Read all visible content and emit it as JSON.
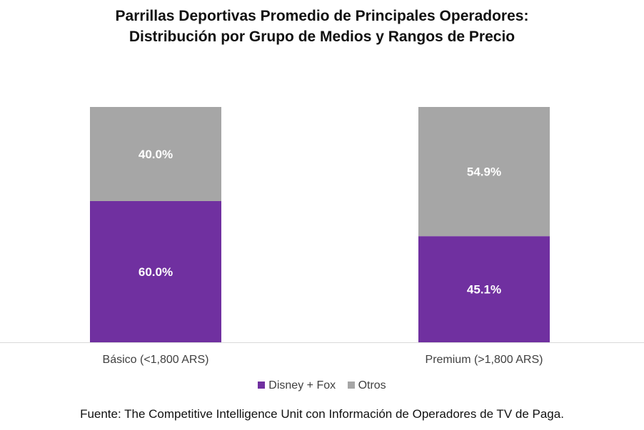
{
  "chart_data": {
    "type": "bar",
    "stacked": true,
    "percent_stacked": true,
    "title_lines": [
      "Parrillas Deportivas Promedio de Principales Operadores:",
      "Distribución por Grupo de Medios y Rangos de Precio"
    ],
    "categories": [
      "Básico (<1,800 ARS)",
      "Premium (>1,800 ARS)"
    ],
    "series": [
      {
        "name": "Disney + Fox",
        "values": [
          60.0,
          45.1
        ],
        "labels": [
          "60.0%",
          "45.1%"
        ],
        "color": "#7030a0"
      },
      {
        "name": "Otros",
        "values": [
          40.0,
          54.9
        ],
        "labels": [
          "40.0%",
          "54.9%"
        ],
        "color": "#a6a6a6"
      }
    ],
    "ylim": [
      0,
      100
    ],
    "grid": false,
    "legend_position": "bottom"
  },
  "source_note": "Fuente: The Competitive Intelligence Unit con Información de Operadores de TV de Paga."
}
